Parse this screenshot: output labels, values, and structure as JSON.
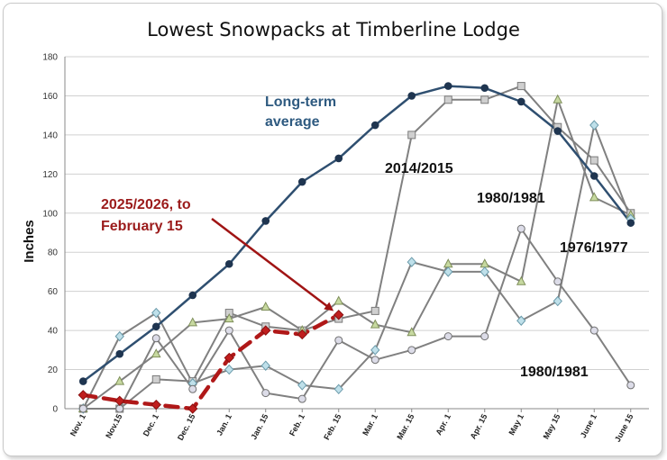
{
  "chart_data": {
    "type": "line",
    "title": "Lowest Snowpacks at Timberline Lodge",
    "xlabel": "",
    "ylabel": "Inches",
    "ylim": [
      0,
      180
    ],
    "yticks": [
      0,
      20,
      40,
      60,
      80,
      100,
      120,
      140,
      160,
      180
    ],
    "categories": [
      "Nov. 1",
      "Nov.15",
      "Dec. 1",
      "Dec. 15",
      "Jan. 1",
      "Jan. 15",
      "Feb. 1",
      "Feb. 15",
      "Mar. 1",
      "Mar. 15",
      "Apr. 1",
      "Apr. 15",
      "May 1",
      "May 15",
      "June 1",
      "June 15"
    ],
    "grid": "horizontal",
    "legend": "none (inline labels)",
    "series": [
      {
        "name": "Long-term average",
        "color": "#2f4f70",
        "marker": "circle-dark",
        "values": [
          14,
          28,
          42,
          58,
          74,
          96,
          116,
          128,
          145,
          160,
          165,
          164,
          157,
          142,
          119,
          95
        ]
      },
      {
        "name": "2014/2015",
        "color": "#808080",
        "marker": "square-gray",
        "values": [
          0,
          0,
          15,
          14,
          49,
          42,
          40,
          46,
          50,
          140,
          158,
          158,
          165,
          144,
          127,
          100
        ]
      },
      {
        "name": "1980/1981",
        "color": "#808080",
        "marker": "triangle-green",
        "values": [
          0,
          14,
          28,
          44,
          46,
          52,
          40,
          55,
          43,
          39,
          74,
          74,
          65,
          158,
          108,
          99
        ]
      },
      {
        "name": "1976/1977",
        "color": "#808080",
        "marker": "diamond-blue",
        "values": [
          0,
          37,
          49,
          13,
          20,
          22,
          12,
          10,
          30,
          75,
          70,
          70,
          45,
          55,
          145,
          97
        ]
      },
      {
        "name": "1980/1981",
        "color": "#808080",
        "marker": "circle-gray",
        "values": [
          0,
          0,
          36,
          10,
          40,
          8,
          5,
          35,
          25,
          30,
          37,
          37,
          92,
          65,
          40,
          12
        ]
      },
      {
        "name": "2025/2026, to February 15",
        "color": "#b01818",
        "marker": "diamond-red",
        "dashed": true,
        "values": [
          7,
          4,
          2,
          0,
          26,
          40,
          38,
          48,
          null,
          null,
          null,
          null,
          null,
          null,
          null,
          null
        ]
      }
    ],
    "annotations": [
      {
        "text_lines": [
          "Long-term",
          "average"
        ],
        "color": "#2e5a80"
      },
      {
        "text_lines": [
          "2014/2015"
        ],
        "color": "#111111"
      },
      {
        "text_lines": [
          "1980/1981"
        ],
        "color": "#111111"
      },
      {
        "text_lines": [
          "1976/1977"
        ],
        "color": "#111111"
      },
      {
        "text_lines": [
          "1980/1981"
        ],
        "color": "#111111"
      },
      {
        "text_lines": [
          "2025/2026, to",
          "February 15"
        ],
        "color": "#9b1b1b"
      }
    ]
  }
}
